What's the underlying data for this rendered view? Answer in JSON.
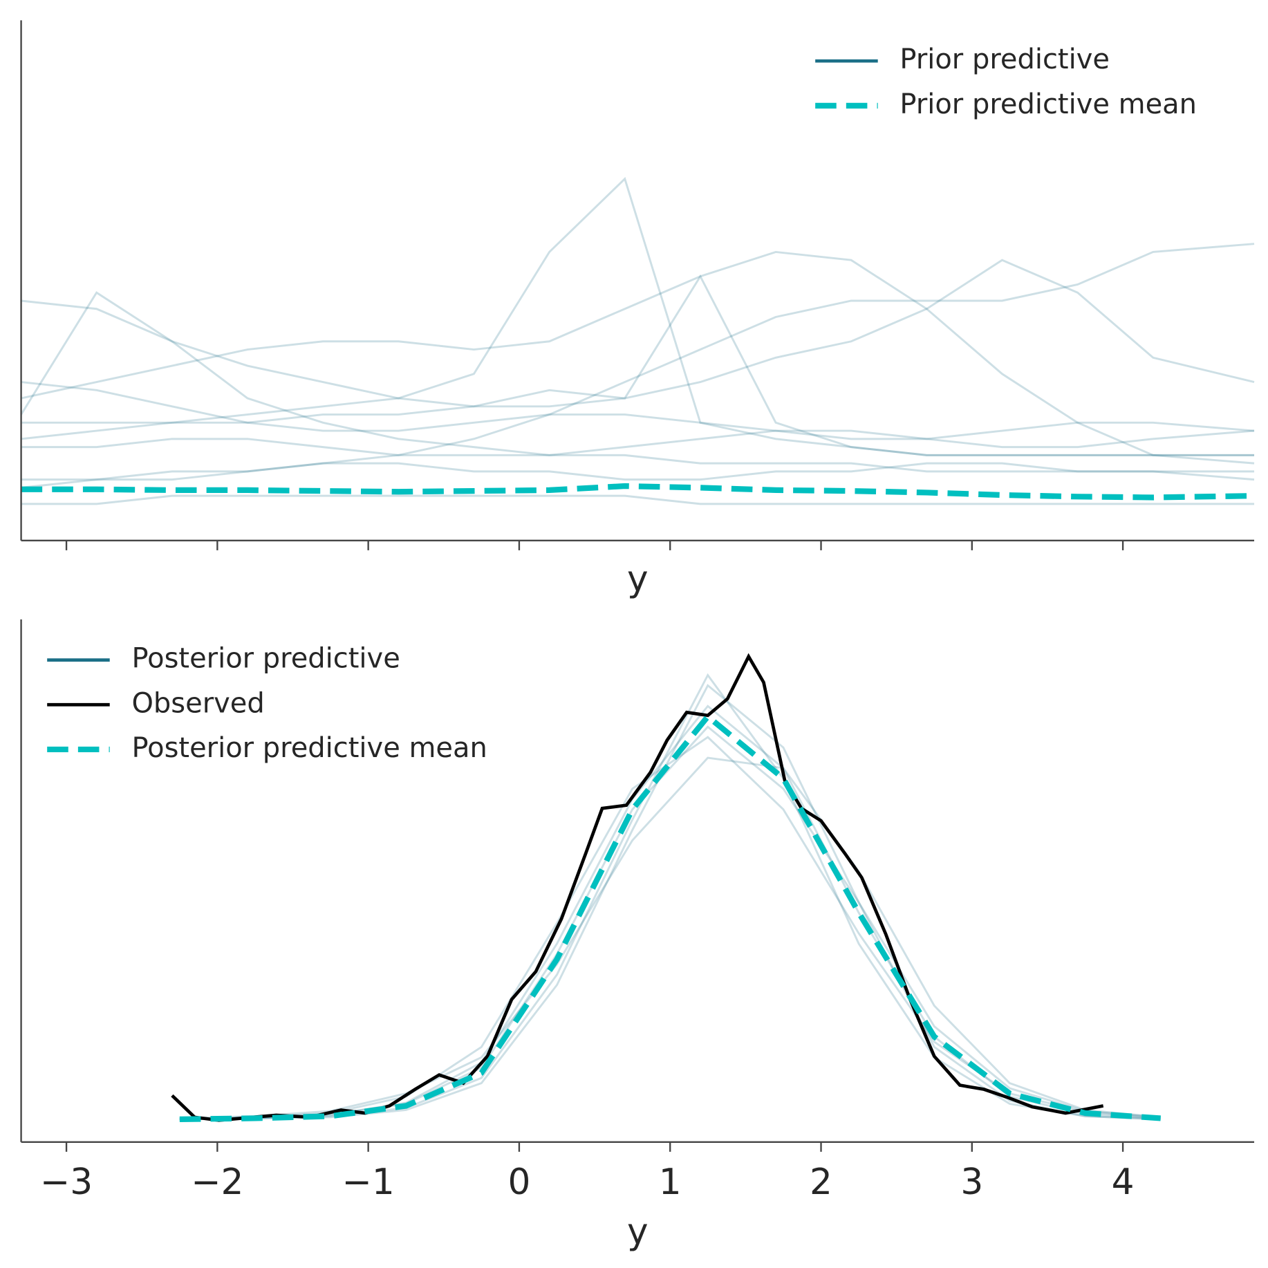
{
  "chart_data": [
    {
      "type": "line",
      "xlabel": "y",
      "xlim": [
        -3.3,
        4.87
      ],
      "ylim": [
        -0.0025,
        0.0615
      ],
      "xticks": [
        -3,
        -2,
        -1,
        0,
        1,
        2,
        3,
        4
      ],
      "xtick_labels": false,
      "legend": "upper right",
      "x": [
        -3.3,
        -2.8,
        -2.3,
        -1.8,
        -1.3,
        -0.8,
        -0.3,
        0.2,
        0.7,
        1.2,
        1.7,
        2.2,
        2.7,
        3.2,
        3.7,
        4.2,
        4.87
      ],
      "series": [
        {
          "name": "Prior predictive",
          "color": "#1b6f87",
          "opacity": 0.22,
          "samples": [
            [
              0.01,
              0.011,
              0.012,
              0.013,
              0.014,
              0.015,
              0.018,
              0.033,
              0.042,
              0.012,
              0.01,
              0.009,
              0.008,
              0.008,
              0.008,
              0.008,
              0.008
            ],
            [
              0.013,
              0.028,
              0.022,
              0.015,
              0.012,
              0.01,
              0.009,
              0.008,
              0.008,
              0.007,
              0.007,
              0.007,
              0.006,
              0.006,
              0.006,
              0.006,
              0.006
            ],
            [
              0.015,
              0.017,
              0.019,
              0.021,
              0.022,
              0.022,
              0.021,
              0.022,
              0.026,
              0.03,
              0.033,
              0.032,
              0.026,
              0.018,
              0.012,
              0.008,
              0.007
            ],
            [
              0.005,
              0.005,
              0.005,
              0.006,
              0.007,
              0.008,
              0.01,
              0.013,
              0.017,
              0.021,
              0.025,
              0.027,
              0.027,
              0.027,
              0.029,
              0.033,
              0.034
            ],
            [
              0.012,
              0.012,
              0.012,
              0.012,
              0.013,
              0.013,
              0.014,
              0.016,
              0.015,
              0.03,
              0.012,
              0.009,
              0.008,
              0.008,
              0.008,
              0.008,
              0.008
            ],
            [
              0.027,
              0.026,
              0.022,
              0.019,
              0.017,
              0.015,
              0.014,
              0.014,
              0.015,
              0.017,
              0.02,
              0.022,
              0.026,
              0.032,
              0.028,
              0.02,
              0.017
            ],
            [
              0.004,
              0.005,
              0.006,
              0.006,
              0.007,
              0.007,
              0.006,
              0.006,
              0.005,
              0.005,
              0.006,
              0.006,
              0.007,
              0.007,
              0.006,
              0.006,
              0.005
            ],
            [
              0.017,
              0.016,
              0.014,
              0.012,
              0.011,
              0.011,
              0.012,
              0.013,
              0.013,
              0.012,
              0.011,
              0.01,
              0.01,
              0.011,
              0.012,
              0.012,
              0.011
            ],
            [
              0.002,
              0.002,
              0.003,
              0.003,
              0.003,
              0.003,
              0.003,
              0.003,
              0.003,
              0.002,
              0.002,
              0.002,
              0.002,
              0.002,
              0.002,
              0.002,
              0.002
            ],
            [
              0.009,
              0.009,
              0.01,
              0.01,
              0.009,
              0.008,
              0.008,
              0.008,
              0.009,
              0.01,
              0.011,
              0.011,
              0.01,
              0.009,
              0.009,
              0.01,
              0.011
            ]
          ]
        },
        {
          "name": "Prior predictive mean",
          "color": "#00bfbf",
          "dashed": true,
          "values": [
            0.0038,
            0.0038,
            0.0037,
            0.0037,
            0.0036,
            0.0035,
            0.0036,
            0.0037,
            0.0042,
            0.004,
            0.0037,
            0.0036,
            0.0034,
            0.0031,
            0.0029,
            0.0028,
            0.003
          ]
        }
      ]
    },
    {
      "type": "line",
      "xlabel": "y",
      "xlim": [
        -3.3,
        4.87
      ],
      "ylim": [
        -0.022,
        0.484
      ],
      "xticks": [
        {
          "value": -3,
          "label": "−3"
        },
        {
          "value": -2,
          "label": "−2"
        },
        {
          "value": -1,
          "label": "−1"
        },
        0,
        1,
        2,
        3,
        4
      ],
      "xtick_labels": true,
      "legend": "upper left",
      "x": [
        -2.25,
        -1.75,
        -1.25,
        -0.75,
        -0.25,
        0.25,
        0.75,
        1.25,
        1.75,
        2.25,
        2.75,
        3.25,
        3.75,
        4.25
      ],
      "series": [
        {
          "name": "Posterior predictive",
          "color": "#1b6f87",
          "opacity": 0.22,
          "samples": [
            [
              0,
              0.001,
              0.004,
              0.016,
              0.055,
              0.17,
              0.31,
              0.4,
              0.34,
              0.2,
              0.08,
              0.022,
              0.005,
              0.001
            ],
            [
              0,
              0.002,
              0.006,
              0.022,
              0.07,
              0.19,
              0.32,
              0.37,
              0.3,
              0.18,
              0.075,
              0.025,
              0.007,
              0.001
            ],
            [
              0,
              0.001,
              0.002,
              0.009,
              0.035,
              0.13,
              0.28,
              0.42,
              0.36,
              0.21,
              0.07,
              0.018,
              0.003,
              0
            ],
            [
              0.001,
              0.003,
              0.008,
              0.025,
              0.06,
              0.15,
              0.27,
              0.35,
              0.34,
              0.24,
              0.11,
              0.035,
              0.009,
              0.002
            ],
            [
              0,
              0.001,
              0.003,
              0.011,
              0.04,
              0.14,
              0.29,
              0.43,
              0.33,
              0.17,
              0.06,
              0.015,
              0.003,
              0
            ],
            [
              0,
              0.002,
              0.005,
              0.015,
              0.05,
              0.16,
              0.3,
              0.38,
              0.32,
              0.21,
              0.09,
              0.03,
              0.008,
              0.002
            ]
          ]
        },
        {
          "name": "Observed",
          "color": "#000000",
          "x": [
            -2.3,
            -2.15,
            -1.99,
            -1.61,
            -1.39,
            -1.18,
            -1.02,
            -0.86,
            -0.69,
            -0.53,
            -0.37,
            -0.21,
            -0.05,
            0.11,
            0.28,
            0.44,
            0.55,
            0.71,
            0.87,
            0.98,
            1.11,
            1.25,
            1.38,
            1.52,
            1.62,
            1.76,
            1.87,
            2.0,
            2.16,
            2.27,
            2.43,
            2.59,
            2.75,
            2.92,
            3.08,
            3.24,
            3.4,
            3.62,
            3.87
          ],
          "values": [
            0.023,
            0.002,
            -0.001,
            0.004,
            0.002,
            0.009,
            0.006,
            0.013,
            0.029,
            0.043,
            0.035,
            0.061,
            0.116,
            0.143,
            0.194,
            0.257,
            0.301,
            0.304,
            0.336,
            0.367,
            0.394,
            0.391,
            0.407,
            0.448,
            0.423,
            0.328,
            0.301,
            0.289,
            0.257,
            0.234,
            0.179,
            0.116,
            0.061,
            0.033,
            0.029,
            0.021,
            0.012,
            0.006,
            0.013
          ]
        },
        {
          "name": "Posterior predictive mean",
          "color": "#00bfbf",
          "dashed": true,
          "values": [
            0,
            0.001,
            0.003,
            0.013,
            0.045,
            0.155,
            0.3,
            0.39,
            0.33,
            0.2,
            0.08,
            0.025,
            0.006,
            0.001
          ]
        }
      ]
    }
  ]
}
